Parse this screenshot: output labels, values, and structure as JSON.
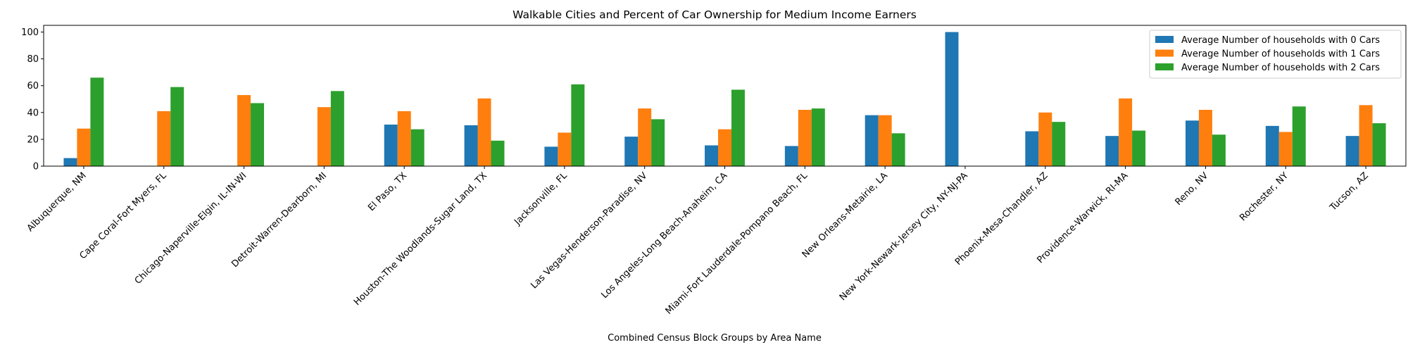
{
  "chart_data": {
    "type": "bar",
    "title": "Walkable Cities and Percent of Car Ownership for Medium Income Earners",
    "xlabel": "Combined Census Block Groups by Area Name",
    "ylabel": "",
    "ylim": [
      0,
      105
    ],
    "yticks": [
      0,
      20,
      40,
      60,
      80,
      100
    ],
    "grid": false,
    "legend_position": "top-right",
    "categories": [
      "Albuquerque, NM",
      "Cape Coral-Fort Myers, FL",
      "Chicago-Naperville-Elgin, IL-IN-WI",
      "Detroit-Warren-Dearborn, MI",
      "El Paso, TX",
      "Houston-The Woodlands-Sugar Land, TX",
      "Jacksonville, FL",
      "Las Vegas-Henderson-Paradise, NV",
      "Los Angeles-Long Beach-Anaheim, CA",
      "Miami-Fort Lauderdale-Pompano Beach, FL",
      "New Orleans-Metairie, LA",
      "New York-Newark-Jersey City, NY-NJ-PA",
      "Phoenix-Mesa-Chandler, AZ",
      "Providence-Warwick, RI-MA",
      "Reno, NV",
      "Rochester, NY",
      "Tucson, AZ"
    ],
    "series": [
      {
        "name": "Average Number of households with 0 Cars",
        "color": "#1f77b4",
        "values": [
          6,
          0,
          0,
          0,
          31,
          30.5,
          14.5,
          22,
          15.5,
          15,
          38,
          100,
          26,
          22.5,
          34,
          30,
          22.5
        ]
      },
      {
        "name": "Average Number of households with 1 Cars",
        "color": "#ff7f0e",
        "values": [
          28,
          41,
          53,
          44,
          41,
          50.5,
          25,
          43,
          27.5,
          42,
          38,
          0,
          40,
          50.5,
          42,
          25.5,
          45.5
        ]
      },
      {
        "name": "Average Number of households with 2 Cars",
        "color": "#2ca02c",
        "values": [
          66,
          59,
          47,
          56,
          27.5,
          19,
          61,
          35,
          57,
          43,
          24.5,
          0,
          33,
          26.5,
          23.5,
          44.5,
          32
        ]
      }
    ]
  }
}
